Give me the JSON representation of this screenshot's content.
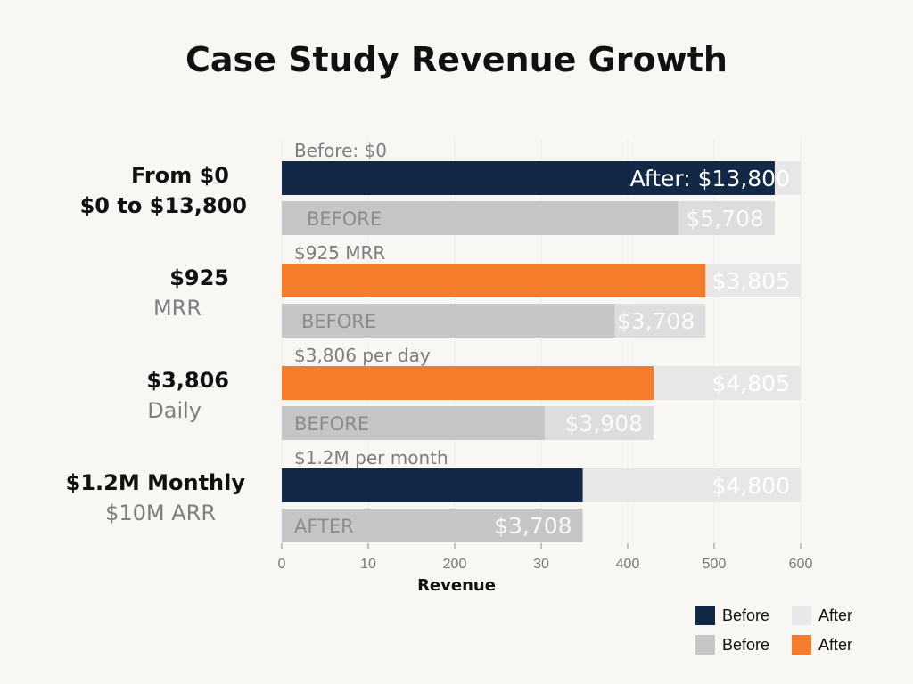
{
  "chart_data": {
    "type": "bar",
    "orientation": "horizontal",
    "title": "Case Study Revenue Growth",
    "xlabel": "Revenue",
    "ylabel": "",
    "x_ticks": [
      "0",
      "10",
      "200",
      "30",
      "400",
      "500",
      "600"
    ],
    "xlim": [
      0,
      600
    ],
    "groups": [
      {
        "label": "From $0",
        "sublabel": "$0 to $13,800",
        "caption": "Before: $0",
        "bars": [
          {
            "label": "After: $13,800",
            "tag": "",
            "value": 570,
            "track": 600,
            "color": "#132846",
            "track_color": "#e7e7e7",
            "soft_label": false
          },
          {
            "label": "$5,708",
            "tag": "BEFORE",
            "value": 458,
            "track": 570,
            "color": "#c6c6c6",
            "track_color": "#dddddd",
            "soft_label": true
          }
        ]
      },
      {
        "label": "$925",
        "sublabel": "MRR",
        "caption": "$925 MRR",
        "bars": [
          {
            "label": "$3,805",
            "tag": "",
            "value": 490,
            "track": 600,
            "color": "#f47c2a",
            "track_color": "#e7e7e7",
            "soft_label": false
          },
          {
            "label": "$3,708",
            "tag": "BEFORE",
            "value": 385,
            "track": 490,
            "color": "#c6c6c6",
            "track_color": "#dddddd",
            "soft_label": true
          }
        ]
      },
      {
        "label": "$3,806",
        "sublabel": "Daily",
        "caption": "$3,806 per day",
        "bars": [
          {
            "label": "$4,805",
            "tag": "",
            "value": 430,
            "track": 600,
            "color": "#f47c2a",
            "track_color": "#e7e7e7",
            "soft_label": false
          },
          {
            "label": "$3,908",
            "tag": "BEFORE",
            "value": 304,
            "track": 430,
            "color": "#c6c6c6",
            "track_color": "#dddddd",
            "soft_label": true
          }
        ]
      },
      {
        "label": "$1.2M Monthly",
        "sublabel": "$10M ARR",
        "caption": "$1.2M per month",
        "bars": [
          {
            "label": "$4,800",
            "tag": "",
            "value": 348,
            "track": 600,
            "color": "#132846",
            "track_color": "#e7e7e7",
            "soft_label": false
          },
          {
            "label": "$3,708",
            "tag": "AFTER",
            "value": 348,
            "track": 348,
            "color": "#c6c6c6",
            "track_color": "#dddddd",
            "soft_label": true
          }
        ]
      }
    ],
    "legend": [
      {
        "label": "Before",
        "color": "#132846"
      },
      {
        "label": "After",
        "color": "#e8e8e8"
      },
      {
        "label": "Before",
        "color": "#c6c6c6"
      },
      {
        "label": "After",
        "color": "#f47c2a"
      }
    ],
    "legend_position": "bottom-right"
  }
}
